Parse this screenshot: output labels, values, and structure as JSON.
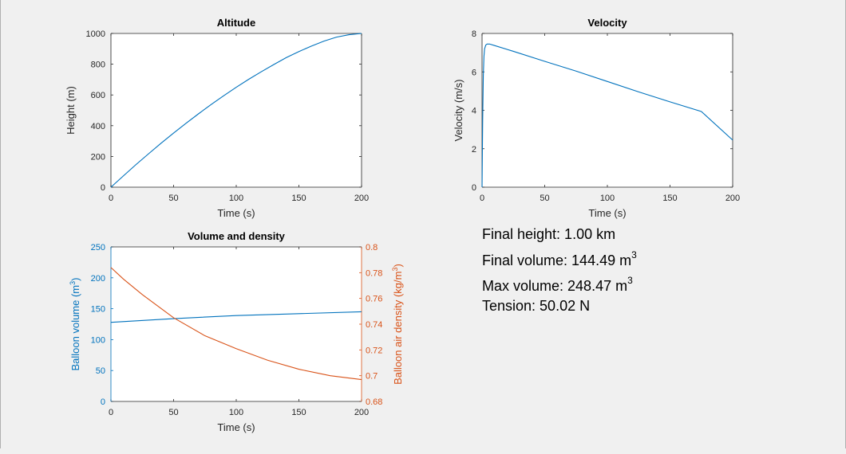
{
  "figure": {
    "background": "#f0f0f0",
    "series_colors": {
      "blue": "#0072bd",
      "orange": "#d95319"
    }
  },
  "chart_data": [
    {
      "id": "altitude",
      "type": "line",
      "title": "Altitude",
      "xlabel": "Time (s)",
      "ylabel": "Height (m)",
      "xlim": [
        0,
        200
      ],
      "ylim": [
        0,
        1000
      ],
      "xticks": [
        0,
        50,
        100,
        150,
        200
      ],
      "yticks": [
        0,
        200,
        400,
        600,
        800,
        1000
      ],
      "grid": false,
      "series": [
        {
          "color": "#0072bd",
          "x": [
            0,
            10,
            20,
            30,
            40,
            50,
            60,
            70,
            80,
            90,
            100,
            110,
            120,
            130,
            140,
            150,
            160,
            170,
            180,
            190,
            200
          ],
          "y": [
            0,
            74,
            147,
            217,
            286,
            352,
            416,
            478,
            538,
            595,
            650,
            702,
            751,
            798,
            843,
            882,
            918,
            950,
            976,
            992,
            1000
          ]
        }
      ]
    },
    {
      "id": "velocity",
      "type": "line",
      "title": "Velocity",
      "xlabel": "Time (s)",
      "ylabel": "Velocity (m/s)",
      "xlim": [
        0,
        200
      ],
      "ylim": [
        0,
        8
      ],
      "xticks": [
        0,
        50,
        100,
        150,
        200
      ],
      "yticks": [
        0,
        2,
        4,
        6,
        8
      ],
      "grid": false,
      "series": [
        {
          "color": "#0072bd",
          "x": [
            0,
            0.5,
            1,
            1.5,
            2,
            3,
            4,
            5,
            6,
            10,
            25,
            50,
            75,
            100,
            125,
            150,
            175,
            200
          ],
          "y": [
            0,
            3.5,
            5.8,
            6.8,
            7.2,
            7.4,
            7.45,
            7.45,
            7.45,
            7.37,
            7.07,
            6.55,
            6.04,
            5.5,
            4.96,
            4.44,
            3.94,
            2.45
          ]
        }
      ]
    },
    {
      "id": "volume-density",
      "type": "line",
      "title": "Volume and density",
      "xlabel": "Time (s)",
      "ylabel_left": "Balloon volume (m3)",
      "ylabel_right": "Balloon air density (kg/m3)",
      "xlim": [
        0,
        200
      ],
      "ylim_left": [
        0,
        250
      ],
      "ylim_right": [
        0.68,
        0.8
      ],
      "xticks": [
        0,
        50,
        100,
        150,
        200
      ],
      "yticks_left": [
        0,
        50,
        100,
        150,
        200,
        250
      ],
      "yticks_right": [
        "0.68",
        "0.7",
        "0.72",
        "0.74",
        "0.76",
        "0.78",
        "0.8"
      ],
      "grid": false,
      "series": [
        {
          "axis": "left",
          "color": "#0072bd",
          "x": [
            0,
            50,
            100,
            150,
            200
          ],
          "y": [
            128,
            134,
            139,
            142,
            145
          ]
        },
        {
          "axis": "right",
          "color": "#d95319",
          "x": [
            0,
            10,
            25,
            50,
            75,
            100,
            125,
            150,
            175,
            200
          ],
          "y": [
            0.784,
            0.775,
            0.763,
            0.745,
            0.731,
            0.721,
            0.712,
            0.705,
            0.7,
            0.697
          ]
        }
      ]
    }
  ],
  "results": {
    "final_height": "Final height: 1.00 km",
    "final_volume": "Final volume: 144.49 m",
    "max_volume": "Max volume: 248.47 m",
    "cube_superscript": "3",
    "tension": "Tension: 50.02 N"
  }
}
